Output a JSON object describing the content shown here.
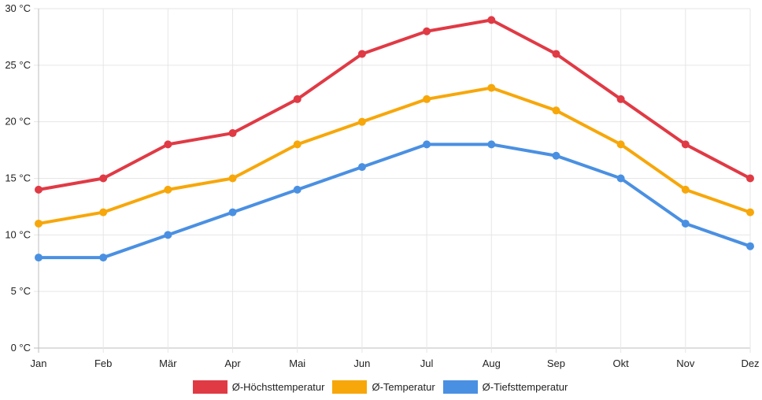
{
  "chart_data": {
    "type": "line",
    "categories": [
      "Jan",
      "Feb",
      "Mär",
      "Apr",
      "Mai",
      "Jun",
      "Jul",
      "Aug",
      "Sep",
      "Okt",
      "Nov",
      "Dez"
    ],
    "ylim": [
      0,
      30
    ],
    "yticks": [
      {
        "value": 0,
        "label": "0 °C"
      },
      {
        "value": 5,
        "label": "5 °C"
      },
      {
        "value": 10,
        "label": "10 °C"
      },
      {
        "value": 15,
        "label": "15 °C"
      },
      {
        "value": 20,
        "label": "20 °C"
      },
      {
        "value": 25,
        "label": "25 °C"
      },
      {
        "value": 30,
        "label": "30 °C"
      }
    ],
    "grid": true,
    "legend_position": "bottom",
    "series": [
      {
        "name": "Ø-Höchsttemperatur",
        "color": "#e03a45",
        "values": [
          14,
          15,
          18,
          19,
          22,
          26,
          28,
          29,
          26,
          22,
          18,
          15
        ]
      },
      {
        "name": "Ø-Temperatur",
        "color": "#f7a70a",
        "values": [
          11,
          12,
          14,
          15,
          18,
          20,
          22,
          23,
          21,
          18,
          14,
          12
        ]
      },
      {
        "name": "Ø-Tiefsttemperatur",
        "color": "#4a90e2",
        "values": [
          8,
          8,
          10,
          12,
          14,
          16,
          18,
          18,
          17,
          15,
          11,
          9
        ]
      }
    ]
  }
}
